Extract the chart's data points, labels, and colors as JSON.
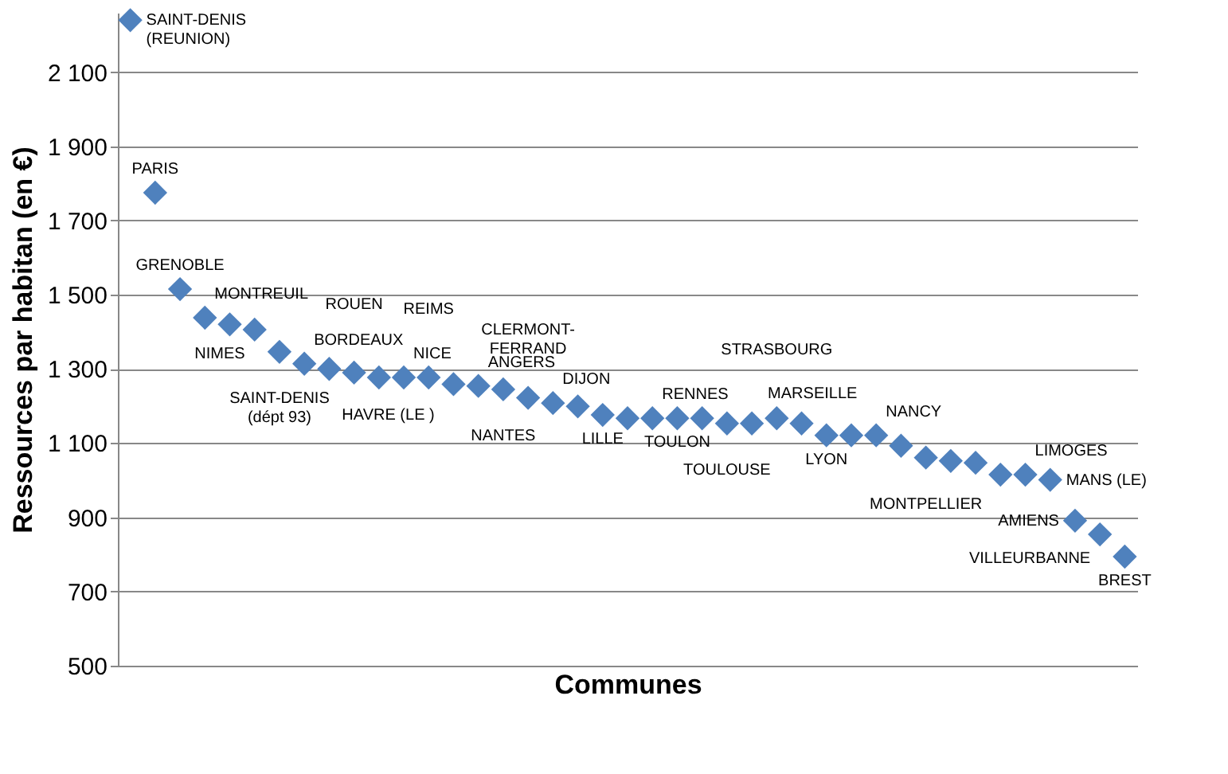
{
  "chart_data": {
    "type": "scatter",
    "xlabel": "Communes",
    "ylabel": "Ressources par habitan (en €)",
    "categories": [
      null,
      null,
      null,
      null,
      null,
      null,
      null,
      null,
      null,
      null,
      null,
      null,
      null,
      null,
      null,
      null,
      null,
      null,
      null,
      null,
      null,
      null,
      null,
      null,
      null,
      null,
      null,
      null,
      null,
      null,
      null,
      null,
      null,
      null,
      null,
      null,
      null,
      null,
      null,
      null,
      null
    ],
    "series": [
      {
        "color": "#4f81bd",
        "values": [
          2240,
          1775,
          1515,
          1438,
          1420,
          1406,
          1346,
          1314,
          1300,
          1290,
          1277,
          1277,
          1277,
          1259,
          1254,
          1245,
          1222,
          1208,
          1199,
          1176,
          1167,
          1167,
          1167,
          1167,
          1153,
          1153,
          1167,
          1153,
          1121,
          1121,
          1121,
          1093,
          1061,
          1052,
          1047,
          1015,
          1015,
          1001,
          891,
          854,
          794
        ],
        "value_labels": [
          "SAINT-DENIS\n(REUNION)",
          "PARIS",
          "GRENOBLE",
          "MONTREUIL",
          null,
          "NIMES",
          "SAINT-DENIS\n(dépt 93)",
          "BORDEAUX",
          "HAVRE (LE )",
          "ROUEN",
          null,
          "NICE",
          "REIMS",
          null,
          "ANGERS",
          "NANTES",
          "CLERMONT-\nFERRAND",
          "DIJON",
          null,
          "LILLE",
          null,
          "RENNES",
          "TOULON",
          null,
          "TOULOUSE",
          "MARSEILLE",
          "STRASBOURG",
          null,
          "LYON",
          null,
          "NANCY",
          null,
          "MONTPELLIER",
          null,
          null,
          null,
          "LIMOGES",
          "MANS (LE)",
          "AMIENS",
          "VILLEURBANNE",
          "BREST"
        ]
      }
    ],
    "ylim": [
      500,
      2260
    ],
    "yticks": [
      {
        "value": 500,
        "label": "500"
      },
      {
        "value": 700,
        "label": "700"
      },
      {
        "value": 900,
        "label": "900"
      },
      {
        "value": 1100,
        "label": "1 100"
      },
      {
        "value": 1300,
        "label": "1 300"
      },
      {
        "value": 1500,
        "label": "1 500"
      },
      {
        "value": 1700,
        "label": "1 700"
      },
      {
        "value": 1900,
        "label": "1 900"
      },
      {
        "value": 2100,
        "label": "2 100"
      }
    ],
    "tick_labels": "y",
    "grid": "y",
    "marker": "diamond",
    "legend": false
  }
}
